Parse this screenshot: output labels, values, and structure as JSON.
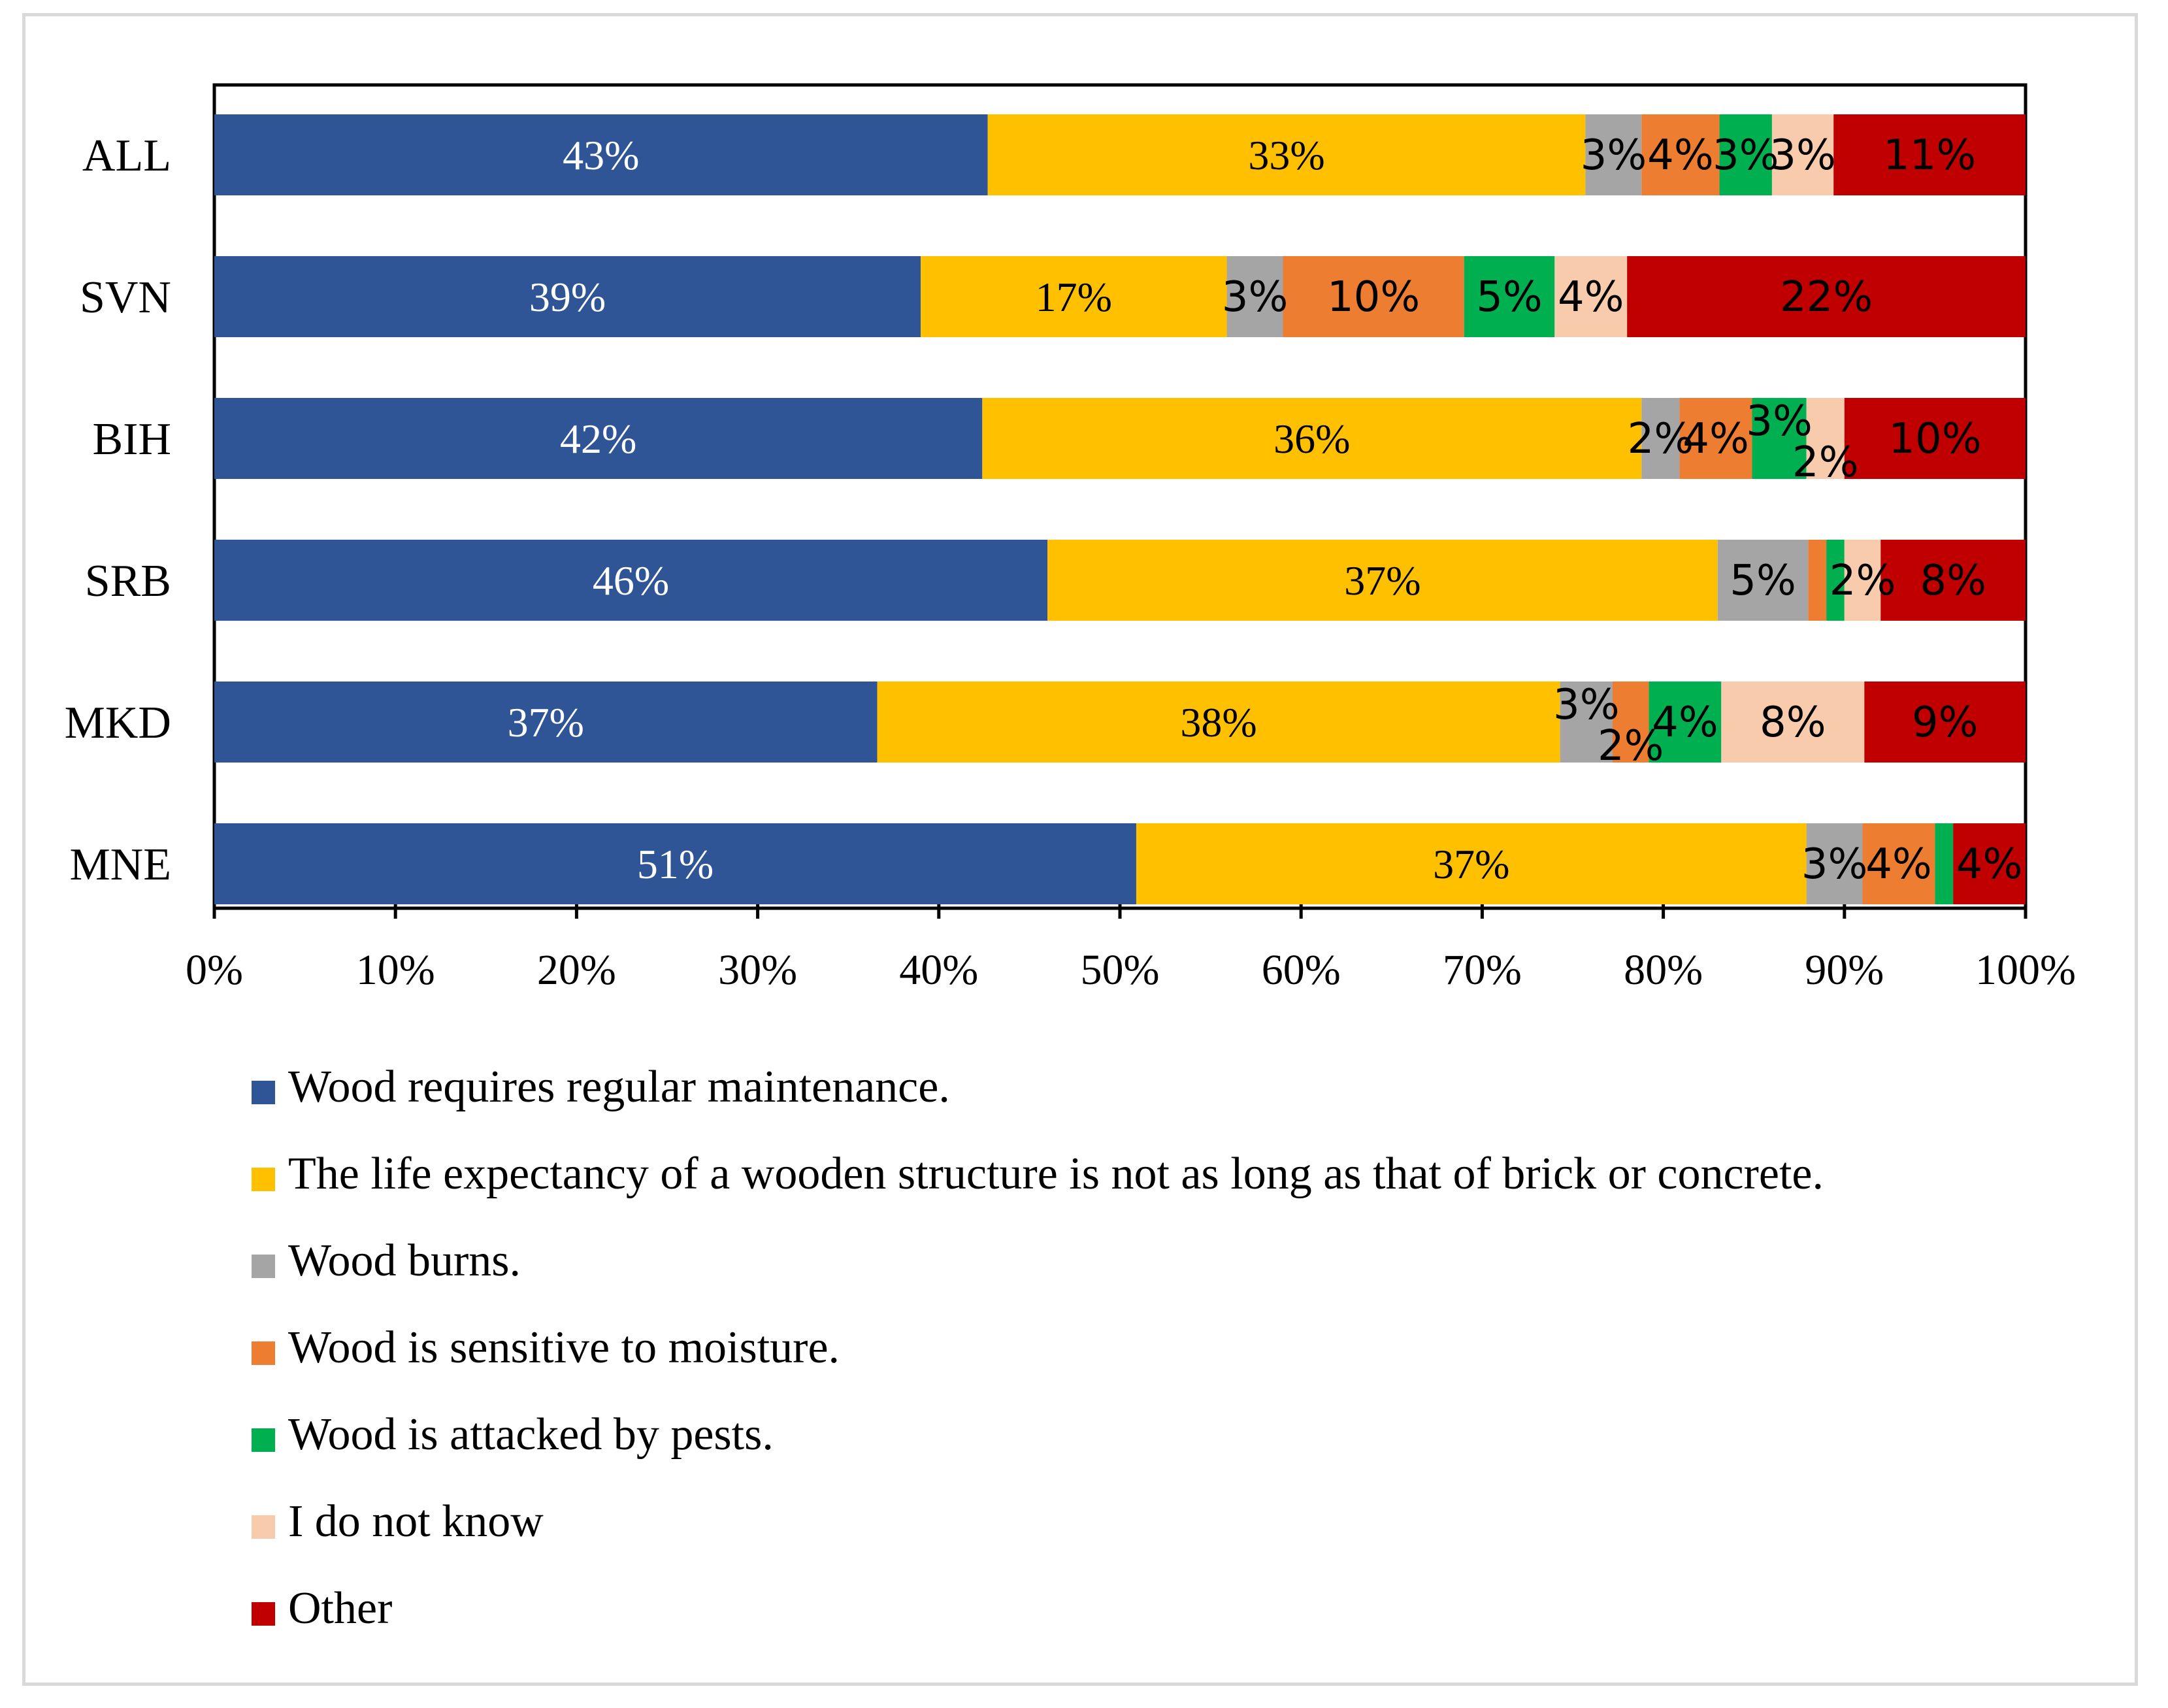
{
  "chart_data": {
    "type": "bar",
    "orientation": "horizontal",
    "stacked": "percent",
    "categories": [
      "ALL",
      "SVN",
      "BIH",
      "SRB",
      "MKD",
      "MNE"
    ],
    "xlim": [
      0,
      100
    ],
    "x_ticks": [
      "0%",
      "10%",
      "20%",
      "30%",
      "40%",
      "50%",
      "60%",
      "70%",
      "80%",
      "90%",
      "100%"
    ],
    "legend_position": "bottom",
    "series": [
      {
        "name": "Wood requires regular maintenance.",
        "color": "#2f5597",
        "values": [
          42.7,
          39.0,
          42.4,
          46.0,
          36.6,
          50.9
        ],
        "labels": [
          "43%",
          "39%",
          "42%",
          "46%",
          "37%",
          "51%"
        ]
      },
      {
        "name": "The life expectancy of a wooden structure is not as long as that of brick or concrete.",
        "color": "#ffc000",
        "values": [
          33.0,
          16.9,
          36.4,
          37.0,
          37.7,
          37.0
        ],
        "labels": [
          "33%",
          "17%",
          "36%",
          "37%",
          "38%",
          "37%"
        ]
      },
      {
        "name": "Wood burns.",
        "color": "#a5a5a5",
        "values": [
          3.1,
          3.1,
          2.1,
          5.0,
          2.9,
          3.1
        ],
        "labels": [
          "3%",
          "3%",
          "2%",
          "5%",
          "3%",
          "3%"
        ]
      },
      {
        "name": "Wood is sensitive to moisture.",
        "color": "#ed7d31",
        "values": [
          4.3,
          10.0,
          4.0,
          1.0,
          2.0,
          4.0
        ],
        "labels": [
          "4%",
          "10%",
          "4%",
          "",
          "2%",
          "4%"
        ]
      },
      {
        "name": "Wood is attacked by pests.",
        "color": "#00b050",
        "values": [
          2.9,
          5.0,
          3.0,
          1.0,
          4.0,
          1.0
        ],
        "labels": [
          "3%",
          "5%",
          "3%",
          "",
          "4%",
          ""
        ]
      },
      {
        "name": "I do not know",
        "color": "#f8cbad",
        "values": [
          3.4,
          4.0,
          2.1,
          2.0,
          7.9,
          0
        ],
        "labels": [
          "3%",
          "4%",
          "2%",
          "2%",
          "8%",
          ""
        ]
      },
      {
        "name": "Other",
        "color": "#c00000",
        "values": [
          10.6,
          22.0,
          10.0,
          8.0,
          8.9,
          4.0
        ],
        "labels": [
          "11%",
          "22%",
          "10%",
          "8%",
          "9%",
          "4%"
        ]
      }
    ]
  }
}
